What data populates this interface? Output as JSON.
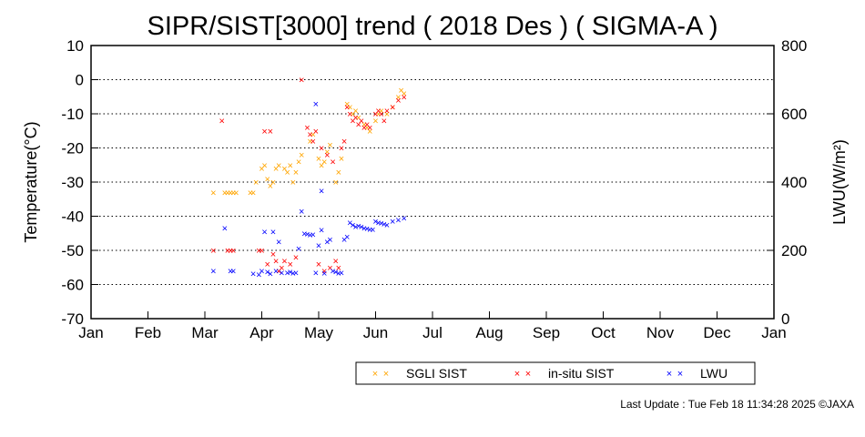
{
  "chart_data": {
    "type": "scatter",
    "title": "SIPR/SIST[3000] trend ( 2018 Des ) ( SIGMA-A )",
    "xlabel": "",
    "ylabel": "Temperature(°C)",
    "y2label": "LWU(W/m²)",
    "x_ticks": [
      "Jan",
      "Feb",
      "Mar",
      "Apr",
      "May",
      "Jun",
      "Jul",
      "Aug",
      "Sep",
      "Oct",
      "Nov",
      "Dec",
      "Jan"
    ],
    "x_range": [
      0,
      12
    ],
    "ylim": [
      -70,
      10
    ],
    "y_ticks": [
      10,
      0,
      -10,
      -20,
      -30,
      -40,
      -50,
      -60,
      -70
    ],
    "y2lim": [
      0,
      800
    ],
    "y2_ticks": [
      800,
      600,
      400,
      200,
      0
    ],
    "grid": "horizontal dotted",
    "legend_position": "bottom",
    "series": [
      {
        "name": "SGLI SIST",
        "color": "#ffa500",
        "axis": "left",
        "points": [
          [
            2.15,
            -33
          ],
          [
            2.35,
            -33
          ],
          [
            2.4,
            -33
          ],
          [
            2.45,
            -33
          ],
          [
            2.5,
            -33
          ],
          [
            2.55,
            -33
          ],
          [
            2.8,
            -33
          ],
          [
            2.85,
            -33
          ],
          [
            2.9,
            -30
          ],
          [
            3.0,
            -26
          ],
          [
            3.05,
            -25
          ],
          [
            3.1,
            -29
          ],
          [
            3.15,
            -31
          ],
          [
            3.2,
            -30
          ],
          [
            3.25,
            -26
          ],
          [
            3.3,
            -25
          ],
          [
            3.4,
            -26
          ],
          [
            3.45,
            -27
          ],
          [
            3.5,
            -25
          ],
          [
            3.55,
            -30
          ],
          [
            3.6,
            -27
          ],
          [
            3.65,
            -24
          ],
          [
            3.7,
            -22
          ],
          [
            3.85,
            -18
          ],
          [
            3.9,
            -16
          ],
          [
            4.0,
            -23
          ],
          [
            4.05,
            -25
          ],
          [
            4.1,
            -24
          ],
          [
            4.15,
            -21
          ],
          [
            4.2,
            -19
          ],
          [
            4.3,
            -30
          ],
          [
            4.35,
            -27
          ],
          [
            4.4,
            -23
          ],
          [
            4.5,
            -7
          ],
          [
            4.55,
            -8
          ],
          [
            4.6,
            -10
          ],
          [
            4.65,
            -9
          ],
          [
            4.7,
            -11
          ],
          [
            4.8,
            -13
          ],
          [
            4.85,
            -14
          ],
          [
            4.9,
            -15
          ],
          [
            5.0,
            -12
          ],
          [
            5.05,
            -10
          ],
          [
            5.1,
            -9
          ],
          [
            5.2,
            -10
          ],
          [
            5.3,
            -8
          ],
          [
            5.4,
            -5
          ],
          [
            5.45,
            -3
          ],
          [
            5.5,
            -4
          ]
        ]
      },
      {
        "name": "in-situ SIST",
        "color": "#ff0000",
        "axis": "left",
        "points": [
          [
            2.15,
            -50
          ],
          [
            2.3,
            -12
          ],
          [
            2.4,
            -50
          ],
          [
            2.45,
            -50
          ],
          [
            2.5,
            -50
          ],
          [
            2.95,
            -50
          ],
          [
            3.0,
            -50
          ],
          [
            3.05,
            -15
          ],
          [
            3.1,
            -54
          ],
          [
            3.15,
            -15
          ],
          [
            3.2,
            -51
          ],
          [
            3.25,
            -53
          ],
          [
            3.3,
            -56
          ],
          [
            3.35,
            -55
          ],
          [
            3.4,
            -53
          ],
          [
            3.5,
            -54
          ],
          [
            3.6,
            -52
          ],
          [
            3.7,
            0
          ],
          [
            3.8,
            -14
          ],
          [
            3.85,
            -16
          ],
          [
            3.9,
            -18
          ],
          [
            3.95,
            -15
          ],
          [
            4.0,
            -54
          ],
          [
            4.05,
            -20
          ],
          [
            4.1,
            -56
          ],
          [
            4.15,
            -22
          ],
          [
            4.2,
            -55
          ],
          [
            4.25,
            -24
          ],
          [
            4.3,
            -53
          ],
          [
            4.35,
            -55
          ],
          [
            4.4,
            -20
          ],
          [
            4.45,
            -18
          ],
          [
            4.5,
            -8
          ],
          [
            4.55,
            -10
          ],
          [
            4.6,
            -12
          ],
          [
            4.65,
            -11
          ],
          [
            4.7,
            -13
          ],
          [
            4.75,
            -12
          ],
          [
            4.8,
            -14
          ],
          [
            4.85,
            -13
          ],
          [
            4.9,
            -14
          ],
          [
            5.0,
            -10
          ],
          [
            5.05,
            -9
          ],
          [
            5.1,
            -10
          ],
          [
            5.15,
            -12
          ],
          [
            5.2,
            -9
          ],
          [
            5.3,
            -8
          ],
          [
            5.4,
            -6
          ],
          [
            5.5,
            -5
          ]
        ]
      },
      {
        "name": "LWU",
        "color": "#0000ff",
        "axis": "right",
        "points": [
          [
            2.15,
            140
          ],
          [
            2.35,
            265
          ],
          [
            2.45,
            140
          ],
          [
            2.5,
            140
          ],
          [
            2.85,
            132
          ],
          [
            2.95,
            130
          ],
          [
            3.0,
            140
          ],
          [
            3.05,
            255
          ],
          [
            3.1,
            138
          ],
          [
            3.15,
            132
          ],
          [
            3.2,
            255
          ],
          [
            3.25,
            140
          ],
          [
            3.3,
            225
          ],
          [
            3.35,
            135
          ],
          [
            3.45,
            135
          ],
          [
            3.5,
            138
          ],
          [
            3.55,
            133
          ],
          [
            3.6,
            135
          ],
          [
            3.65,
            205
          ],
          [
            3.7,
            315
          ],
          [
            3.75,
            250
          ],
          [
            3.8,
            248
          ],
          [
            3.85,
            246
          ],
          [
            3.9,
            247
          ],
          [
            3.95,
            135
          ],
          [
            4.0,
            215
          ],
          [
            4.05,
            260
          ],
          [
            4.1,
            133
          ],
          [
            4.15,
            225
          ],
          [
            4.2,
            232
          ],
          [
            4.25,
            140
          ],
          [
            4.3,
            138
          ],
          [
            4.35,
            133
          ],
          [
            4.4,
            135
          ],
          [
            4.45,
            232
          ],
          [
            4.5,
            240
          ],
          [
            4.55,
            282
          ],
          [
            4.6,
            275
          ],
          [
            4.65,
            270
          ],
          [
            4.7,
            272
          ],
          [
            4.75,
            270
          ],
          [
            4.8,
            265
          ],
          [
            4.85,
            264
          ],
          [
            4.9,
            262
          ],
          [
            4.95,
            262
          ],
          [
            5.0,
            285
          ],
          [
            5.05,
            282
          ],
          [
            5.1,
            280
          ],
          [
            5.15,
            278
          ],
          [
            5.2,
            275
          ],
          [
            5.3,
            285
          ],
          [
            5.4,
            290
          ],
          [
            5.5,
            295
          ],
          [
            3.95,
            630
          ],
          [
            4.05,
            375
          ]
        ]
      }
    ]
  },
  "footer": {
    "last_update": "Last Update : Tue Feb 18 11:34:28 2025  ©JAXA"
  }
}
